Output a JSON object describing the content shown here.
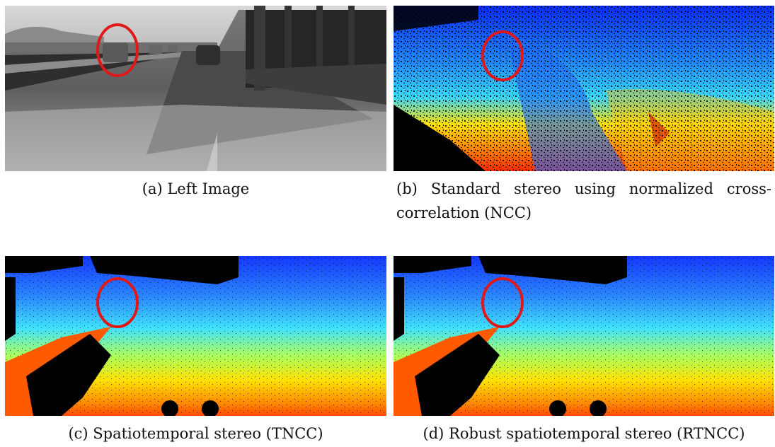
{
  "figure": {
    "panels": [
      {
        "id": "a",
        "caption": "(a) Left Image",
        "kind": "grayscale-photo"
      },
      {
        "id": "b",
        "caption": "(b) Standard stereo using normalized cross-correlation (NCC)",
        "kind": "disparity-noisy"
      },
      {
        "id": "c",
        "caption": "(c) Spatiotemporal stereo (TNCC)",
        "kind": "disparity-smooth"
      },
      {
        "id": "d",
        "caption": "(d) Robust spatiotemporal stereo (RTNCC)",
        "kind": "disparity-smooth"
      }
    ],
    "highlight_color": "#e01818",
    "colormap": [
      "#00007f",
      "#0000ff",
      "#007fff",
      "#00ffff",
      "#7fff7f",
      "#ffff00",
      "#ff7f00",
      "#ff0000"
    ]
  }
}
